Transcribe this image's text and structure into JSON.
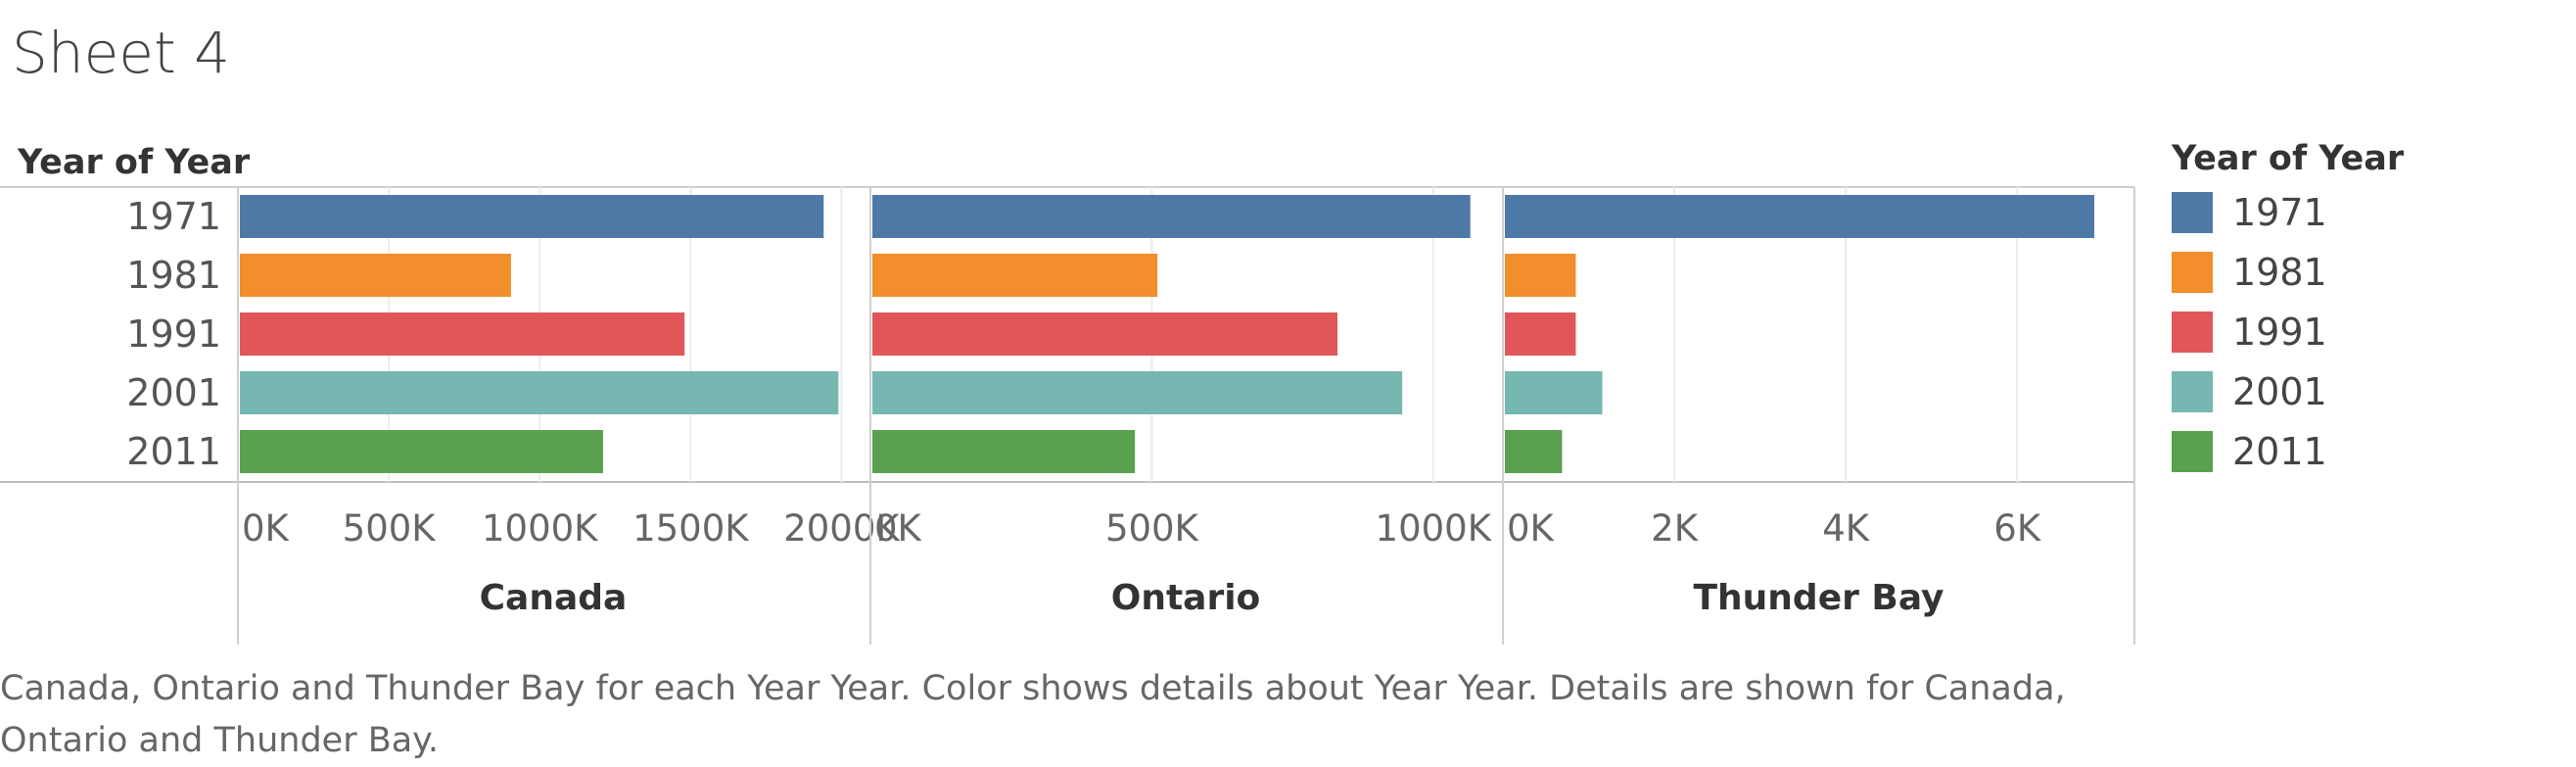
{
  "title": "Sheet 4",
  "caption": "Canada, Ontario and Thunder Bay for each Year Year.  Color shows details about Year Year.  Details are shown for Canada, Ontario and Thunder Bay.",
  "legend": {
    "title": "Year of Year",
    "items": [
      {
        "label": "1971",
        "color": "#4e79a7"
      },
      {
        "label": "1981",
        "color": "#f28e2b"
      },
      {
        "label": "1991",
        "color": "#e15759"
      },
      {
        "label": "2001",
        "color": "#76b7b2"
      },
      {
        "label": "2011",
        "color": "#59a14f"
      }
    ]
  },
  "chart_data": {
    "type": "bar",
    "orientation": "horizontal",
    "row_header": "Year of Year",
    "categories": [
      "1971",
      "1981",
      "1991",
      "2001",
      "2011"
    ],
    "colors": [
      "#4e79a7",
      "#f28e2b",
      "#e15759",
      "#76b7b2",
      "#59a14f"
    ],
    "grid": true,
    "legend_position": "right",
    "panels": [
      {
        "name": "Canada",
        "values": [
          1941000,
          905000,
          1480000,
          1990000,
          1210000
        ],
        "xlim": [
          0,
          2070000
        ],
        "ticks": [
          0,
          500000,
          1000000,
          1500000,
          2000000
        ],
        "tick_labels": [
          "0K",
          "500K",
          "1000K",
          "1500K",
          "2000K"
        ]
      },
      {
        "name": "Ontario",
        "values": [
          1066000,
          510000,
          830000,
          945000,
          470000
        ],
        "xlim": [
          0,
          1110000
        ],
        "ticks": [
          0,
          500000,
          1000000
        ],
        "tick_labels": [
          "0K",
          "500K",
          "1000K"
        ]
      },
      {
        "name": "Thunder Bay",
        "values": [
          6900,
          850,
          850,
          1160,
          690
        ],
        "xlim": [
          0,
          7300
        ],
        "ticks": [
          0,
          2000,
          4000,
          6000
        ],
        "tick_labels": [
          "0K",
          "2K",
          "4K",
          "6K"
        ]
      }
    ]
  }
}
